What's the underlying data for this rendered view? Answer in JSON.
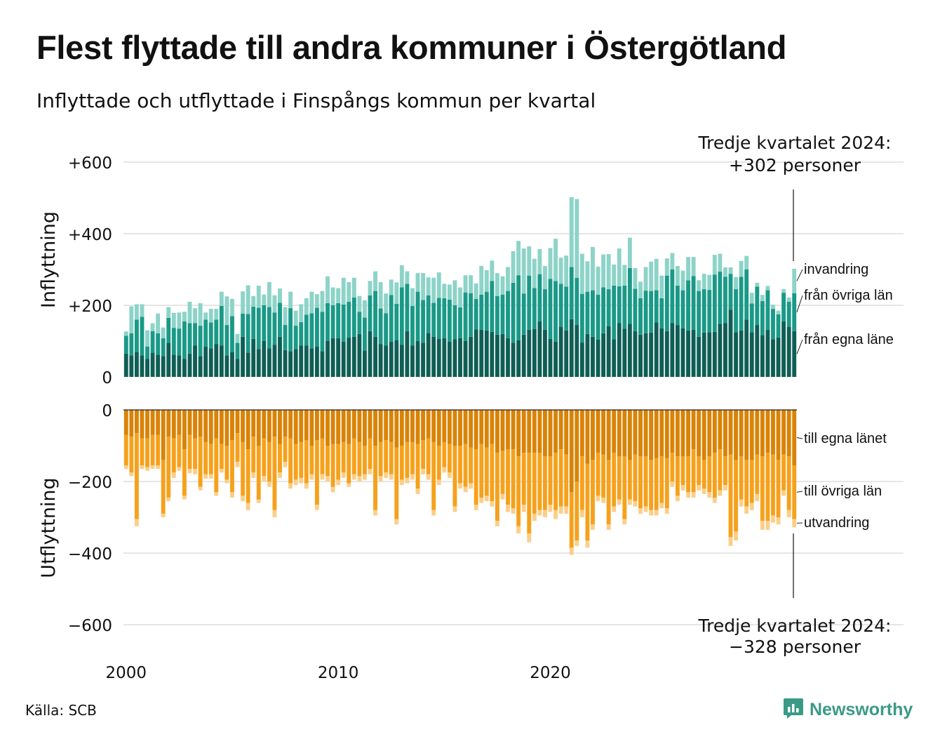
{
  "title": "Flest flyttade till andra kommuner i Östergötland",
  "subtitle": "Inflyttade och utflyttade i Finspångs kommun per kvartal",
  "source": "Källa: SCB",
  "brand": "Newsworthy",
  "brand_icon": "newsworthy-logo-icon",
  "colors": {
    "in_egna": "#0f5e55",
    "in_ovriga": "#1a9987",
    "in_invandring": "#8dd3c8",
    "out_egna": "#d98307",
    "out_ovriga": "#f6a11c",
    "out_utvandring": "#fbcf8a",
    "grid": "#dddddd",
    "brand": "#3a9a86"
  },
  "chart_data": [
    {
      "type": "bar",
      "stacked": true,
      "ylabel": "Inflyttning",
      "ylim": [
        0,
        650
      ],
      "yticks": [
        0,
        200,
        400,
        600
      ],
      "ytick_labels": [
        "0",
        "+200",
        "+400",
        "+600"
      ],
      "grid": true,
      "start": "2000 Q1",
      "frequency": "quarterly",
      "series": [
        {
          "name": "från egna läne",
          "values": [
            65,
            60,
            70,
            60,
            50,
            68,
            62,
            58,
            95,
            62,
            60,
            50,
            65,
            88,
            58,
            85,
            80,
            92,
            88,
            60,
            70,
            50,
            112,
            68,
            106,
            78,
            100,
            80,
            90,
            112,
            75,
            72,
            78,
            88,
            88,
            80,
            85,
            72,
            100,
            108,
            108,
            98,
            110,
            112,
            120,
            74,
            128,
            112,
            92,
            88,
            98,
            102,
            90,
            128,
            88,
            100,
            95,
            123,
            112,
            106,
            108,
            98,
            105,
            108,
            100,
            112,
            133,
            132,
            130,
            126,
            118,
            120,
            108,
            95,
            102,
            118,
            132,
            134,
            155,
            132,
            106,
            98,
            140,
            130,
            161,
            145,
            96,
            120,
            112,
            104,
            122,
            142,
            105,
            150,
            135,
            148,
            128,
            118,
            122,
            124,
            152,
            136,
            128,
            150,
            145,
            136,
            130,
            132,
            112,
            124,
            125,
            126,
            148,
            150,
            188,
            125,
            130,
            160,
            125,
            145,
            117,
            132,
            105,
            110,
            155,
            140,
            128
          ]
        },
        {
          "name": "från övriga län",
          "values": [
            50,
            62,
            90,
            108,
            35,
            60,
            60,
            50,
            70,
            75,
            75,
            105,
            85,
            62,
            85,
            75,
            72,
            68,
            110,
            85,
            100,
            45,
            65,
            108,
            90,
            115,
            100,
            115,
            90,
            95,
            70,
            120,
            65,
            65,
            86,
            98,
            108,
            110,
            106,
            92,
            98,
            104,
            100,
            110,
            62,
            92,
            100,
            128,
            99,
            90,
            131,
            102,
            160,
            132,
            110,
            138,
            120,
            105,
            95,
            115,
            112,
            118,
            95,
            86,
            136,
            122,
            85,
            98,
            108,
            142,
            108,
            110,
            132,
            168,
            182,
            115,
            151,
            114,
            132,
            113,
            168,
            170,
            120,
            122,
            146,
            132,
            136,
            118,
            130,
            126,
            128,
            103,
            150,
            103,
            120,
            156,
            118,
            102,
            119,
            116,
            90,
            84,
            155,
            150,
            110,
            106,
            140,
            150,
            128,
            121,
            118,
            160,
            146,
            130,
            100,
            120,
            150,
            140,
            80,
            107,
            95,
            110,
            85,
            65,
            80,
            70,
            106
          ]
        },
        {
          "name": "invandring",
          "values": [
            12,
            75,
            43,
            35,
            45,
            22,
            55,
            30,
            30,
            42,
            45,
            27,
            60,
            42,
            63,
            20,
            38,
            30,
            40,
            80,
            48,
            25,
            62,
            80,
            30,
            62,
            30,
            70,
            48,
            40,
            50,
            46,
            42,
            50,
            46,
            60,
            38,
            58,
            75,
            50,
            42,
            75,
            55,
            55,
            44,
            48,
            40,
            55,
            74,
            55,
            43,
            60,
            62,
            35,
            50,
            52,
            75,
            50,
            70,
            71,
            40,
            42,
            70,
            56,
            48,
            50,
            43,
            80,
            60,
            57,
            64,
            51,
            67,
            88,
            96,
            126,
            82,
            82,
            70,
            65,
            86,
            118,
            73,
            87,
            195,
            220,
            112,
            85,
            121,
            78,
            92,
            98,
            59,
            106,
            58,
            85,
            58,
            46,
            66,
            82,
            88,
            63,
            48,
            46,
            55,
            55,
            65,
            53,
            30,
            43,
            42,
            55,
            50,
            26,
            18,
            34,
            44,
            38,
            30,
            11,
            17,
            12,
            12,
            10,
            10,
            12,
            68
          ]
        }
      ]
    },
    {
      "type": "bar",
      "stacked": true,
      "ylabel": "Utflyttning",
      "ylim": [
        -650,
        0
      ],
      "yticks": [
        0,
        -200,
        -400,
        -600
      ],
      "ytick_labels": [
        "0",
        "−200",
        "−400",
        "−600"
      ],
      "grid": true,
      "start": "2000 Q1",
      "frequency": "quarterly",
      "series": [
        {
          "name": "till egna länet",
          "values": [
            -70,
            -75,
            -65,
            -80,
            -80,
            -70,
            -70,
            -140,
            -75,
            -80,
            -70,
            -110,
            -70,
            -80,
            -75,
            -90,
            -95,
            -80,
            -95,
            -100,
            -85,
            -65,
            -90,
            -110,
            -75,
            -100,
            -80,
            -90,
            -75,
            -95,
            -75,
            -80,
            -95,
            -90,
            -85,
            -100,
            -85,
            -80,
            -100,
            -95,
            -95,
            -90,
            -95,
            -80,
            -90,
            -100,
            -80,
            -100,
            -90,
            -85,
            -90,
            -105,
            -100,
            -90,
            -90,
            -95,
            -85,
            -80,
            -90,
            -100,
            -90,
            -95,
            -100,
            -100,
            -95,
            -105,
            -110,
            -95,
            -105,
            -95,
            -120,
            -115,
            -110,
            -110,
            -130,
            -120,
            -120,
            -120,
            -120,
            -130,
            -130,
            -120,
            -110,
            -125,
            -230,
            -200,
            -130,
            -150,
            -140,
            -120,
            -125,
            -140,
            -120,
            -130,
            -130,
            -140,
            -125,
            -130,
            -130,
            -140,
            -135,
            -130,
            -135,
            -120,
            -130,
            -130,
            -130,
            -110,
            -130,
            -140,
            -130,
            -120,
            -110,
            -130,
            -125,
            -140,
            -130,
            -140,
            -140,
            -125,
            -130,
            -120,
            -125,
            -140,
            -125,
            -130,
            -155
          ]
        },
        {
          "name": "till övriga län",
          "values": [
            -85,
            -100,
            -240,
            -75,
            -80,
            -85,
            -85,
            -150,
            -170,
            -95,
            -90,
            -130,
            -95,
            -85,
            -140,
            -90,
            -85,
            -150,
            -70,
            -95,
            -145,
            -80,
            -150,
            -150,
            -100,
            -150,
            -105,
            -110,
            -205,
            -80,
            -70,
            -125,
            -100,
            -100,
            -120,
            -80,
            -180,
            -100,
            -85,
            -120,
            -100,
            -85,
            -110,
            -100,
            -95,
            -80,
            -85,
            -180,
            -95,
            -90,
            -90,
            -200,
            -95,
            -100,
            -90,
            -125,
            -80,
            -100,
            -190,
            -95,
            -70,
            -80,
            -170,
            -105,
            -120,
            -100,
            -155,
            -150,
            -135,
            -160,
            -190,
            -120,
            -155,
            -165,
            -195,
            -145,
            -225,
            -170,
            -160,
            -150,
            -135,
            -160,
            -160,
            -145,
            -155,
            -165,
            -150,
            -215,
            -180,
            -120,
            -120,
            -180,
            -150,
            -120,
            -175,
            -110,
            -130,
            -145,
            -140,
            -140,
            -145,
            -130,
            -140,
            -80,
            -110,
            -80,
            -100,
            -120,
            -80,
            -80,
            -100,
            -125,
            -115,
            -80,
            -230,
            -200,
            -120,
            -130,
            -120,
            -110,
            -180,
            -190,
            -170,
            -160,
            -100,
            -150,
            -150
          ]
        },
        {
          "name": "utvandring",
          "values": [
            -10,
            -10,
            -20,
            -10,
            -10,
            -10,
            -10,
            -10,
            -10,
            -15,
            -10,
            -10,
            -12,
            -15,
            -10,
            -12,
            -12,
            -10,
            -10,
            -10,
            -15,
            -15,
            -15,
            -20,
            -15,
            -10,
            -15,
            -15,
            -20,
            -15,
            -15,
            -15,
            -15,
            -15,
            -15,
            -15,
            -15,
            -15,
            -15,
            -15,
            -15,
            -15,
            -10,
            -15,
            -15,
            -15,
            -15,
            -15,
            -15,
            -15,
            -15,
            -15,
            -15,
            -15,
            -15,
            -15,
            -15,
            -15,
            -15,
            -15,
            -15,
            -15,
            -15,
            -15,
            -15,
            -15,
            -15,
            -15,
            -15,
            -15,
            -15,
            -15,
            -20,
            -15,
            -20,
            -20,
            -25,
            -20,
            -15,
            -20,
            -20,
            -25,
            -20,
            -20,
            -20,
            -15,
            -20,
            -20,
            -15,
            -15,
            -15,
            -15,
            -15,
            -15,
            -15,
            -15,
            -15,
            -15,
            -15,
            -15,
            -15,
            -15,
            -15,
            -15,
            -15,
            -15,
            -15,
            -15,
            -15,
            -15,
            -15,
            -15,
            -15,
            -15,
            -25,
            -25,
            -20,
            -20,
            -20,
            -20,
            -25,
            -25,
            -20,
            -20,
            -15,
            -20,
            -23
          ]
        }
      ]
    }
  ],
  "x_axis": {
    "ticks": [
      "2000",
      "2010",
      "2020"
    ]
  },
  "annotations": {
    "top": {
      "line1": "Tredje kvartalet 2024:",
      "line2": "+302 personer"
    },
    "bottom": {
      "line1": "Tredje kvartalet 2024:",
      "line2": "−328 personer"
    }
  },
  "legend": {
    "top": [
      "invandring",
      "från övriga län",
      "från egna läne"
    ],
    "bottom": [
      "till egna länet",
      "till övriga län",
      "utvandring"
    ]
  }
}
